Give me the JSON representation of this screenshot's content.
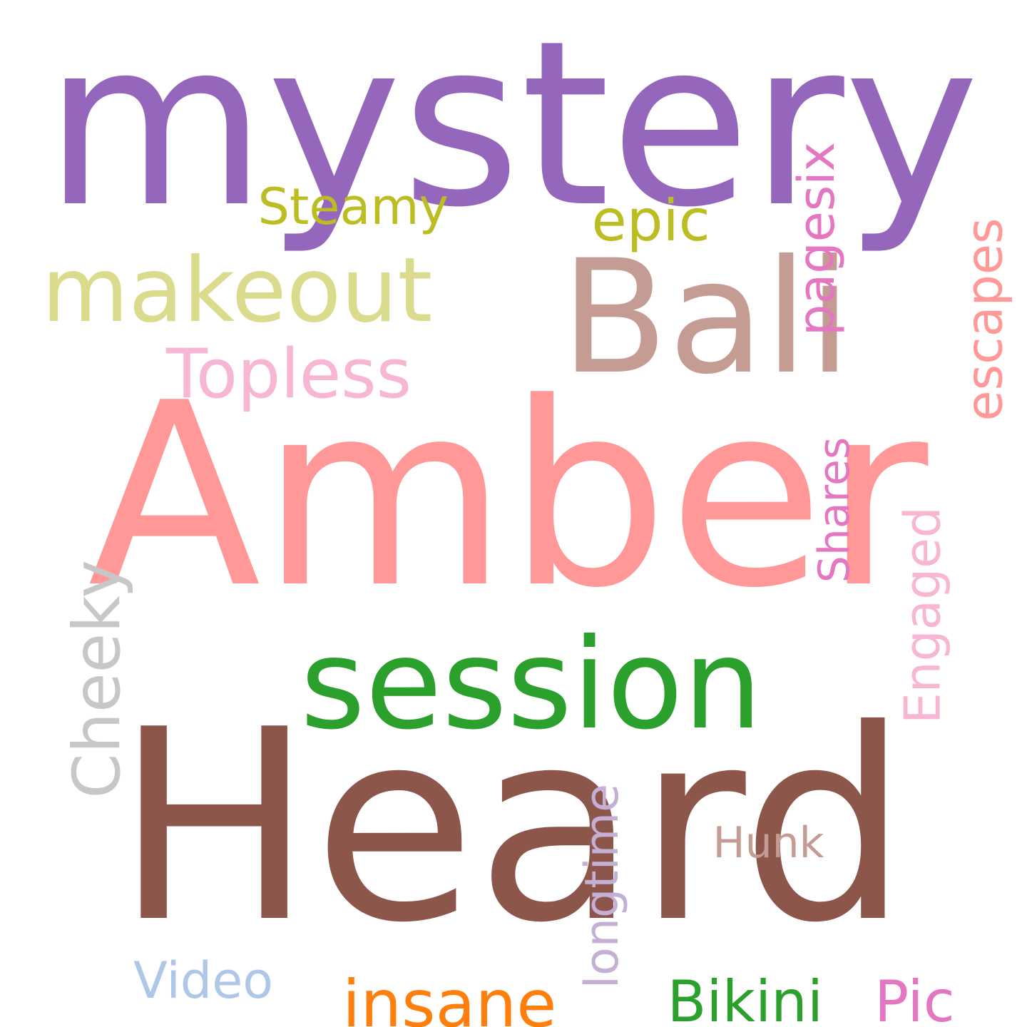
{
  "words": [
    {
      "text": "mystery",
      "color": "#9467bd"
    },
    {
      "text": "Bali",
      "color": "#c49c94"
    },
    {
      "text": "Amber",
      "color": "#ff9896"
    },
    {
      "text": "Heard",
      "color": "#8c564b"
    },
    {
      "text": "session",
      "color": "#2ca02c"
    },
    {
      "text": "makeout",
      "color": "#dbdb8d"
    },
    {
      "text": "Steamy",
      "color": "#bcbd22"
    },
    {
      "text": "epic",
      "color": "#bcbd22"
    },
    {
      "text": "Topless",
      "color": "#f7b6d2"
    },
    {
      "text": "pagesix",
      "color": "#e377c2",
      "vertical": true
    },
    {
      "text": "escapes",
      "color": "#ff9896",
      "vertical": true
    },
    {
      "text": "Shares",
      "color": "#e377c2",
      "vertical": true
    },
    {
      "text": "Engaged",
      "color": "#f7b6d2",
      "vertical": true
    },
    {
      "text": "Cheeky",
      "color": "#c7c7c7",
      "vertical": true
    },
    {
      "text": "longtime",
      "color": "#c5b0d5",
      "vertical": true
    },
    {
      "text": "Hunk",
      "color": "#c49c94"
    },
    {
      "text": "Video",
      "color": "#aec7e8"
    },
    {
      "text": "insane",
      "color": "#ff7f0e"
    },
    {
      "text": "Bikini",
      "color": "#2ca02c"
    },
    {
      "text": "Pic",
      "color": "#e377c2"
    }
  ]
}
